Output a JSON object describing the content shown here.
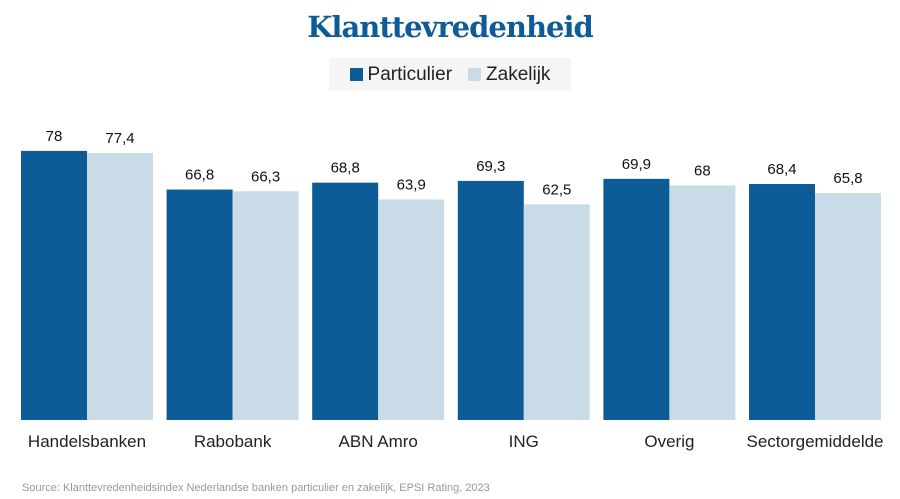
{
  "chart_data": {
    "type": "bar",
    "title": "Klanttevredenheid",
    "categories": [
      "Handelsbanken",
      "Rabobank",
      "ABN Amro",
      "ING",
      "Overig",
      "Sectorgemiddelde"
    ],
    "series": [
      {
        "name": "Particulier",
        "color": "#0d5c98",
        "values": [
          78,
          66.8,
          68.8,
          69.3,
          69.9,
          68.4
        ],
        "labels": [
          "78",
          "66,8",
          "68,8",
          "69,3",
          "69,9",
          "68,4"
        ]
      },
      {
        "name": "Zakelijk",
        "color": "#c8dbe6",
        "values": [
          77.4,
          66.3,
          63.9,
          62.5,
          68,
          65.8
        ],
        "labels": [
          "77,4",
          "66,3",
          "63,9",
          "62,5",
          "68",
          "65,8"
        ]
      }
    ],
    "ylim": [
      0,
      80
    ],
    "grid": false,
    "legend": "top-center",
    "source": "Source: Klanttevredenheidsindex Nederlandse banken particulier en zakelijk, EPSI Rating, 2023"
  }
}
